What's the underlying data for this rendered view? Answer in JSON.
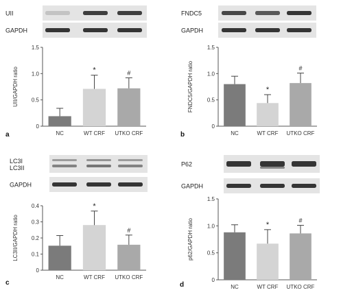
{
  "colors": {
    "NC": "#7b7b7b",
    "WT CRF": "#d4d4d4",
    "UTKO CRF": "#a9a9a9",
    "blot_bg": "#e4e4e4",
    "band": "#2b2b2b",
    "axis": "#555555"
  },
  "chart_data": [
    {
      "panel": "a",
      "type": "bar",
      "blots": [
        {
          "label": "UII"
        },
        {
          "label": "GAPDH"
        }
      ],
      "categories": [
        "NC",
        "WT CRF",
        "UTKO CRF"
      ],
      "values": [
        0.19,
        0.71,
        0.72
      ],
      "errors": [
        0.15,
        0.26,
        0.2
      ],
      "ylabel": "UII/GAPDH ratio",
      "ylim": [
        0,
        1.5
      ],
      "yticks": [
        "0",
        "0.5",
        "1.0",
        "1.5"
      ],
      "annotations": [
        "",
        "*",
        "#"
      ]
    },
    {
      "panel": "b",
      "type": "bar",
      "blots": [
        {
          "label": "FNDC5"
        },
        {
          "label": "GAPDH"
        }
      ],
      "categories": [
        "NC",
        "WT CRF",
        "UTKO CRF"
      ],
      "values": [
        0.8,
        0.44,
        0.82
      ],
      "errors": [
        0.15,
        0.16,
        0.19
      ],
      "ylabel": "FNDC5/GAPDH ratio",
      "ylim": [
        0,
        1.5
      ],
      "yticks": [
        "0",
        "0.5",
        "1.0",
        "1.5"
      ],
      "annotations": [
        "",
        "*",
        "#"
      ]
    },
    {
      "panel": "c",
      "type": "bar",
      "blots": [
        {
          "label": "LC3I",
          "label2": "LC3II"
        },
        {
          "label": "GAPDH"
        }
      ],
      "categories": [
        "NC",
        "WT CRF",
        "UTKO CRF"
      ],
      "values": [
        0.152,
        0.28,
        0.158
      ],
      "errors": [
        0.063,
        0.087,
        0.06
      ],
      "ylabel": "LC3II/GAPDH ratio",
      "ylim": [
        0,
        0.4
      ],
      "yticks": [
        "0",
        "0.1",
        "0.2",
        "0.3",
        "0.4"
      ],
      "annotations": [
        "",
        "*",
        "#"
      ]
    },
    {
      "panel": "d",
      "type": "bar",
      "blots": [
        {
          "label": "P62"
        },
        {
          "label": "GAPDH"
        }
      ],
      "categories": [
        "NC",
        "WT CRF",
        "UTKO CRF"
      ],
      "values": [
        0.88,
        0.67,
        0.86
      ],
      "errors": [
        0.14,
        0.26,
        0.15
      ],
      "ylabel": "p62/GAPDH ratio",
      "ylim": [
        0,
        1.5
      ],
      "yticks": [
        "0",
        "0.5",
        "1.0",
        "1.5"
      ],
      "annotations": [
        "",
        "*",
        "#"
      ]
    }
  ]
}
